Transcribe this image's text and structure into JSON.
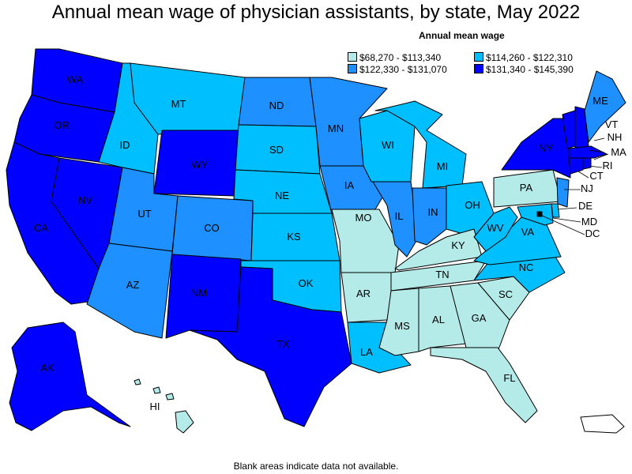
{
  "title": "Annual mean wage of physician assistants, by state, May 2022",
  "legend": {
    "title": "Annual mean wage",
    "items": [
      {
        "label": "$68,270 - $113,340",
        "color": "#b4ebe8"
      },
      {
        "label": "$114,260 - $122,310",
        "color": "#00bfff"
      },
      {
        "label": "$122,330 - $131,070",
        "color": "#1e90ff"
      },
      {
        "label": "$131,340 - $145,390",
        "color": "#0000ff"
      }
    ]
  },
  "footnote": "Blank areas indicate data not available.",
  "states": [
    {
      "abbr": "WA",
      "tier": 3
    },
    {
      "abbr": "OR",
      "tier": 3
    },
    {
      "abbr": "CA",
      "tier": 3
    },
    {
      "abbr": "NV",
      "tier": 3
    },
    {
      "abbr": "ID",
      "tier": 1
    },
    {
      "abbr": "MT",
      "tier": 1
    },
    {
      "abbr": "WY",
      "tier": 3
    },
    {
      "abbr": "UT",
      "tier": 2
    },
    {
      "abbr": "CO",
      "tier": 2
    },
    {
      "abbr": "AZ",
      "tier": 2
    },
    {
      "abbr": "NM",
      "tier": 3
    },
    {
      "abbr": "TX",
      "tier": 3
    },
    {
      "abbr": "ND",
      "tier": 2
    },
    {
      "abbr": "SD",
      "tier": 1
    },
    {
      "abbr": "NE",
      "tier": 1
    },
    {
      "abbr": "KS",
      "tier": 1
    },
    {
      "abbr": "OK",
      "tier": 1
    },
    {
      "abbr": "MN",
      "tier": 2
    },
    {
      "abbr": "IA",
      "tier": 2
    },
    {
      "abbr": "MO",
      "tier": 0
    },
    {
      "abbr": "AR",
      "tier": 0
    },
    {
      "abbr": "LA",
      "tier": 1
    },
    {
      "abbr": "WI",
      "tier": 1
    },
    {
      "abbr": "IL",
      "tier": 2
    },
    {
      "abbr": "MI",
      "tier": 1
    },
    {
      "abbr": "IN",
      "tier": 2
    },
    {
      "abbr": "OH",
      "tier": 1
    },
    {
      "abbr": "KY",
      "tier": 0
    },
    {
      "abbr": "TN",
      "tier": 0
    },
    {
      "abbr": "MS",
      "tier": 0
    },
    {
      "abbr": "AL",
      "tier": 0
    },
    {
      "abbr": "GA",
      "tier": 0
    },
    {
      "abbr": "FL",
      "tier": 0
    },
    {
      "abbr": "SC",
      "tier": 0
    },
    {
      "abbr": "NC",
      "tier": 1
    },
    {
      "abbr": "VA",
      "tier": 1
    },
    {
      "abbr": "WV",
      "tier": 1
    },
    {
      "abbr": "PA",
      "tier": 0
    },
    {
      "abbr": "NY",
      "tier": 3
    },
    {
      "abbr": "NJ",
      "tier": 2
    },
    {
      "abbr": "DE",
      "tier": 1
    },
    {
      "abbr": "MD",
      "tier": 1
    },
    {
      "abbr": "DC",
      "tier": 1
    },
    {
      "abbr": "CT",
      "tier": 3
    },
    {
      "abbr": "RI",
      "tier": 3
    },
    {
      "abbr": "MA",
      "tier": 3
    },
    {
      "abbr": "VT",
      "tier": 3
    },
    {
      "abbr": "NH",
      "tier": 3
    },
    {
      "abbr": "ME",
      "tier": 2
    },
    {
      "abbr": "AK",
      "tier": 3
    },
    {
      "abbr": "HI",
      "tier": 0
    },
    {
      "abbr": "PR",
      "tier": null
    }
  ]
}
